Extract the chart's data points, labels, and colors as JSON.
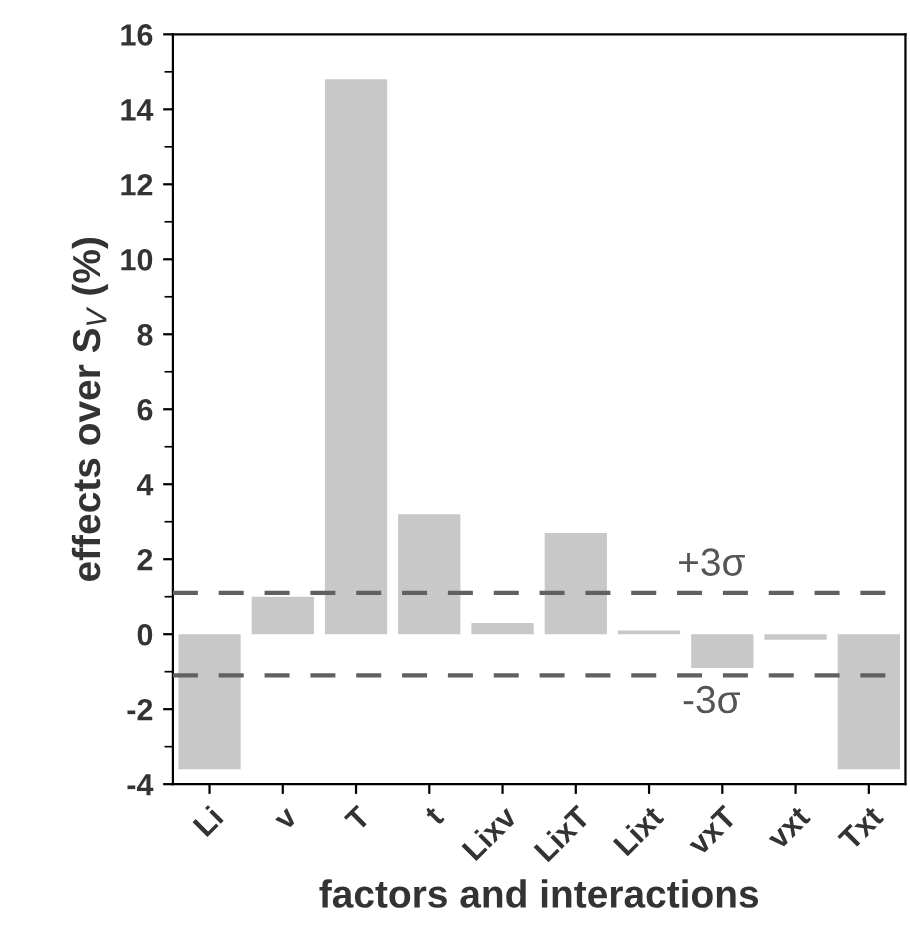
{
  "chart_data": {
    "type": "bar",
    "xlabel": "factors and interactions",
    "ylabel": "effects over S$_{V}$ (%)",
    "categories": [
      "Li",
      "v",
      "T",
      "t",
      "Lixv",
      "LixT",
      "Lixt",
      "vxT",
      "vxt",
      "Txt"
    ],
    "values": [
      -3.6,
      1.0,
      14.8,
      3.2,
      0.3,
      2.7,
      0.1,
      -0.9,
      -0.15,
      -3.6
    ],
    "color": "#c8c8c8",
    "ylim": [
      -4,
      16
    ],
    "yticks": [
      -4,
      -2,
      0,
      2,
      4,
      6,
      8,
      10,
      12,
      14,
      16
    ],
    "ref_lines": [
      {
        "axis": "y",
        "value": 1.1,
        "label": "+3σ",
        "color": "#606060",
        "line_style": "dashed"
      },
      {
        "axis": "y",
        "value": -1.1,
        "label": "-3σ",
        "color": "#606060",
        "line_style": "dashed"
      }
    ],
    "grid": false,
    "legend": false
  }
}
